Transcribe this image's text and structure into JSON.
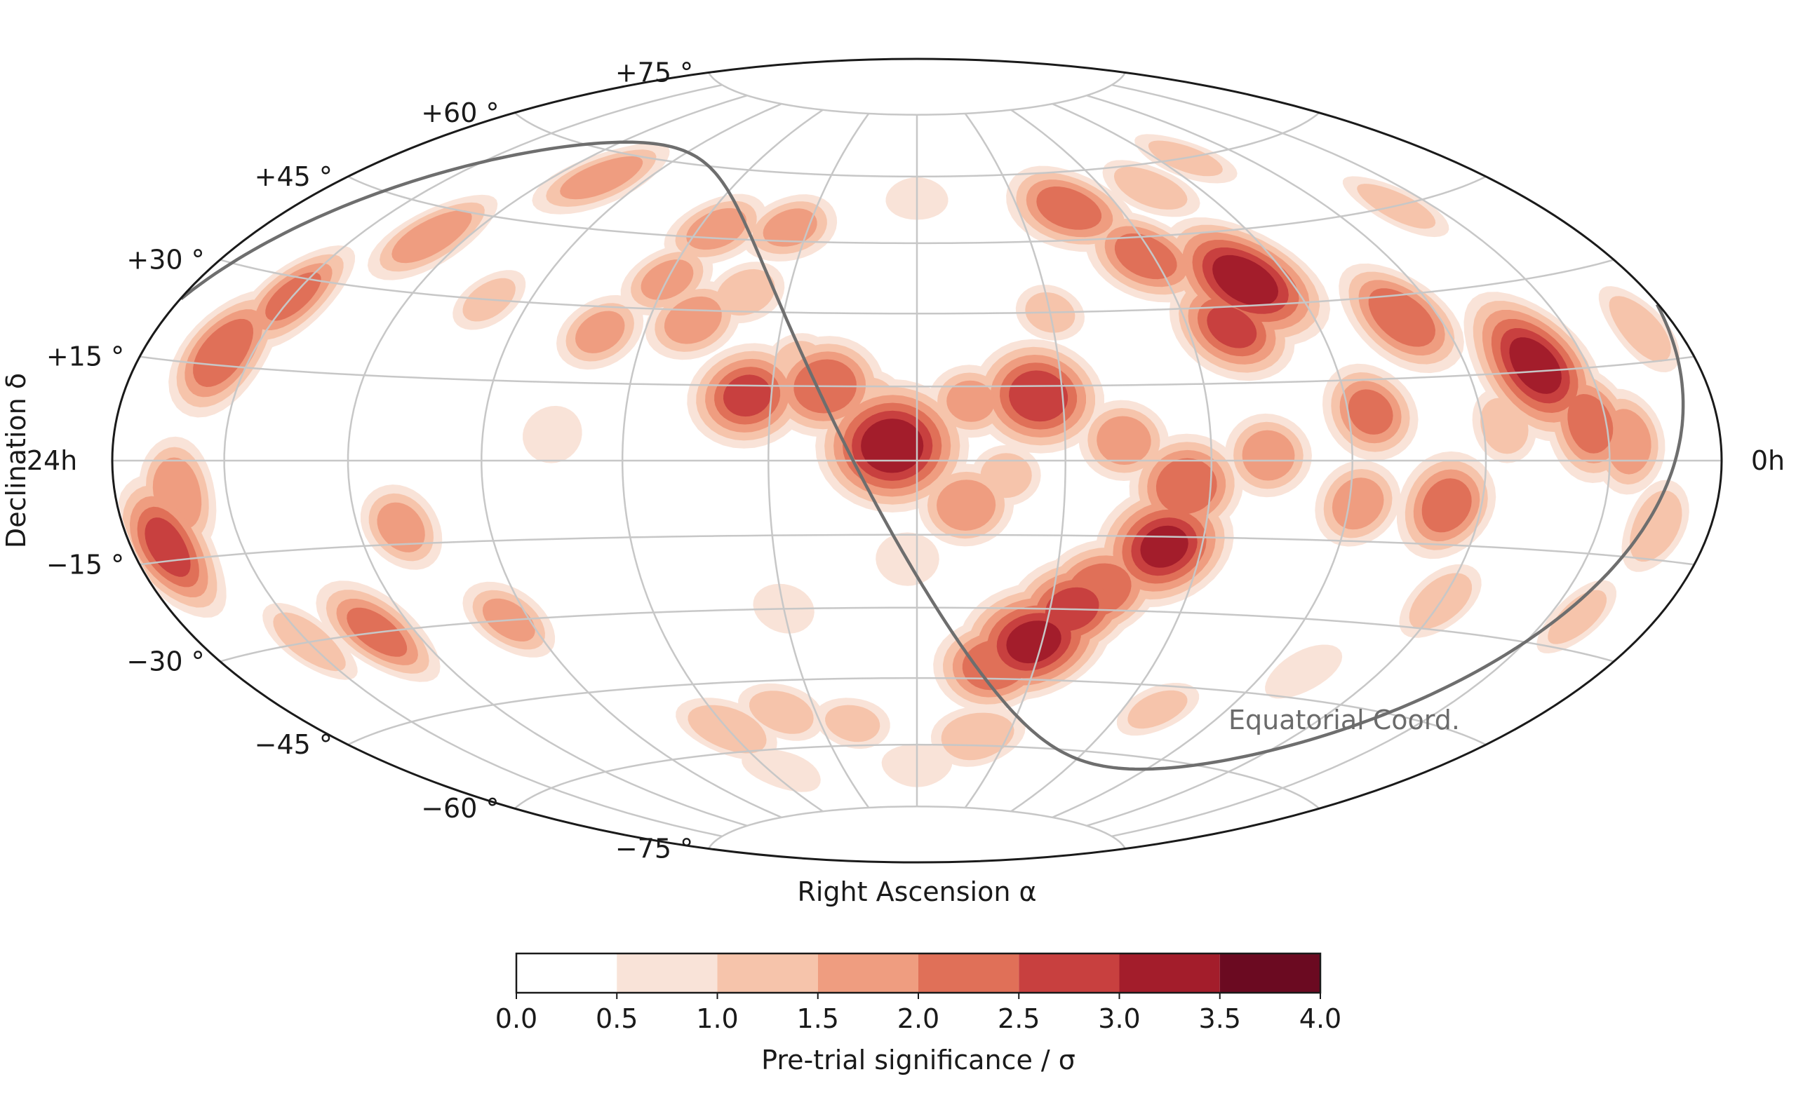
{
  "chart_data": {
    "type": "heatmap",
    "projection": "Hammer-Aitoff (equatorial, right ascension increasing to the left)",
    "xlabel": "Right Ascension α",
    "ylabel": "Declination δ",
    "ra_left_label": "24h",
    "ra_right_label": "0h",
    "dec_tick_labels": [
      {
        "dec": 75,
        "label": "+75 °"
      },
      {
        "dec": 60,
        "label": "+60 °"
      },
      {
        "dec": 45,
        "label": "+45 °"
      },
      {
        "dec": 30,
        "label": "+30 °"
      },
      {
        "dec": 15,
        "label": "+15 °"
      },
      {
        "dec": -15,
        "label": "−15 °"
      },
      {
        "dec": -30,
        "label": "−30 °"
      },
      {
        "dec": -45,
        "label": "−45 °"
      },
      {
        "dec": -60,
        "label": "−60 °"
      },
      {
        "dec": -75,
        "label": "−75 °"
      }
    ],
    "grid": true,
    "grid_meridians_deg": [
      -150,
      -120,
      -90,
      -60,
      -30,
      0,
      30,
      60,
      90,
      120,
      150
    ],
    "grid_parallels_deg": [
      -75,
      -60,
      -45,
      -30,
      -15,
      0,
      15,
      30,
      45,
      60,
      75
    ],
    "annotation": "Equatorial Coord.",
    "overlay_curve": "galactic plane",
    "colorbar": {
      "label": "Pre-trial significance / σ",
      "bounds": [
        0.0,
        0.5,
        1.0,
        1.5,
        2.0,
        2.5,
        3.0,
        3.5,
        4.0
      ],
      "tick_labels": [
        "0.0",
        "0.5",
        "1.0",
        "1.5",
        "2.0",
        "2.5",
        "3.0",
        "3.5",
        "4.0"
      ],
      "colors": [
        "#ffffff",
        "#f9e3d8",
        "#f6c4ab",
        "#ef9d80",
        "#e07058",
        "#c8403f",
        "#a31d2b",
        "#6b0a21"
      ]
    },
    "hotspots": [
      {
        "lon": -5,
        "lat": 3,
        "sigma": 3.2
      },
      {
        "lon": -5,
        "lat": 3,
        "sigma_core": 3.4
      },
      {
        "lon": 25,
        "lat": 13,
        "sigma": 2.8
      },
      {
        "lon": 79,
        "lat": 35,
        "sigma": 3.3
      },
      {
        "lon": 137,
        "lat": 16,
        "sigma": 3.2
      },
      {
        "lon": 70,
        "lat": 26,
        "sigma": 2.5
      },
      {
        "lon": 111,
        "lat": 26,
        "sigma": 2.4
      },
      {
        "lon": 58,
        "lat": 41,
        "sigma": 2.2
      },
      {
        "lon": 45,
        "lat": 52,
        "sigma": 2.2
      },
      {
        "lon": 75,
        "lat": 55,
        "sigma": 1.2
      },
      {
        "lon": 146,
        "lat": 6,
        "sigma": 2.2
      },
      {
        "lon": 155,
        "lat": 3,
        "sigma": 1.8
      },
      {
        "lon": 95,
        "lat": 9,
        "sigma": 2.0
      },
      {
        "lon": 125,
        "lat": 6,
        "sigma": 1.2
      },
      {
        "lon": 112,
        "lat": -8,
        "sigma": 2.2
      },
      {
        "lon": 92,
        "lat": -8,
        "sigma": 1.7
      },
      {
        "lon": 55,
        "lat": -5,
        "sigma": 2.4
      },
      {
        "lon": 52,
        "lat": -17,
        "sigma": 3.0
      },
      {
        "lon": 40,
        "lat": -26,
        "sigma": 2.4
      },
      {
        "lon": 35,
        "lat": -30,
        "sigma": 2.6
      },
      {
        "lon": 28,
        "lat": -37,
        "sigma": 3.1
      },
      {
        "lon": 20,
        "lat": -42,
        "sigma": 2.4
      },
      {
        "lon": 72,
        "lat": 1,
        "sigma": 1.7
      },
      {
        "lon": 42,
        "lat": 4,
        "sigma": 1.7
      },
      {
        "lon": 11,
        "lat": 12,
        "sigma": 1.5
      },
      {
        "lon": 10,
        "lat": -9,
        "sigma": 1.8
      },
      {
        "lon": 18,
        "lat": -3,
        "sigma": 1.1
      },
      {
        "lon": 45,
        "lat": -22,
        "sigma": 1.1
      },
      {
        "lon": 22,
        "lat": 16,
        "sigma": 1.1
      },
      {
        "lon": -19,
        "lat": 15,
        "sigma": 2.4
      },
      {
        "lon": -35,
        "lat": 13,
        "sigma": 2.5
      },
      {
        "lon": -50,
        "lat": 28,
        "sigma": 1.7
      },
      {
        "lon": -40,
        "lat": 34,
        "sigma": 1.2
      },
      {
        "lon": -55,
        "lat": 47,
        "sigma": 1.6
      },
      {
        "lon": -35,
        "lat": 48,
        "sigma": 1.5
      },
      {
        "lon": -60,
        "lat": 36,
        "sigma": 1.5
      },
      {
        "lon": -70,
        "lat": 25,
        "sigma": 1.5
      },
      {
        "lon": -105,
        "lat": 55,
        "sigma": 1.7
      },
      {
        "lon": -130,
        "lat": 40,
        "sigma": 1.8
      },
      {
        "lon": -150,
        "lat": 27,
        "sigma": 2.0
      },
      {
        "lon": -158,
        "lat": 17,
        "sigma": 2.4
      },
      {
        "lon": -163,
        "lat": -5,
        "sigma": 1.9
      },
      {
        "lon": -170,
        "lat": -13,
        "sigma": 2.6
      },
      {
        "lon": -110,
        "lat": -12,
        "sigma": 1.6
      },
      {
        "lon": -130,
        "lat": -30,
        "sigma": 2.1
      },
      {
        "lon": -95,
        "lat": -30,
        "sigma": 1.5
      },
      {
        "lon": -150,
        "lat": -30,
        "sigma": 1.3
      },
      {
        "lon": -10,
        "lat": 12,
        "sigma": 1.2
      },
      {
        "lon": -2,
        "lat": -20,
        "sigma": 0.9
      },
      {
        "lon": -60,
        "lat": -55,
        "sigma": 1.4
      },
      {
        "lon": -40,
        "lat": -52,
        "sigma": 1.2
      },
      {
        "lon": -20,
        "lat": -55,
        "sigma": 1.0
      },
      {
        "lon": -30,
        "lat": -30,
        "sigma": 0.8
      },
      {
        "lon": -75,
        "lat": 5,
        "sigma": 0.9
      },
      {
        "lon": -100,
        "lat": 30,
        "sigma": 1.0
      },
      {
        "lon": 170,
        "lat": 20,
        "sigma": 1.3
      },
      {
        "lon": 165,
        "lat": -10,
        "sigma": 1.4
      },
      {
        "lon": 158,
        "lat": -25,
        "sigma": 1.1
      },
      {
        "lon": 120,
        "lat": -25,
        "sigma": 1.3
      },
      {
        "lon": 100,
        "lat": -40,
        "sigma": 0.9
      },
      {
        "lon": 70,
        "lat": -50,
        "sigma": 1.0
      },
      {
        "lon": 20,
        "lat": -58,
        "sigma": 1.4
      },
      {
        "lon": 0,
        "lat": -65,
        "sigma": 0.8
      },
      {
        "lon": -55,
        "lat": -65,
        "sigma": 0.8
      },
      {
        "lon": 140,
        "lat": 45,
        "sigma": 1.1
      },
      {
        "lon": 100,
        "lat": 60,
        "sigma": 1.0
      },
      {
        "lon": 30,
        "lat": 30,
        "sigma": 1.0
      },
      {
        "lon": 0,
        "lat": 55,
        "sigma": 0.7
      },
      {
        "lon": -25,
        "lat": 20,
        "sigma": 1.0
      }
    ]
  }
}
